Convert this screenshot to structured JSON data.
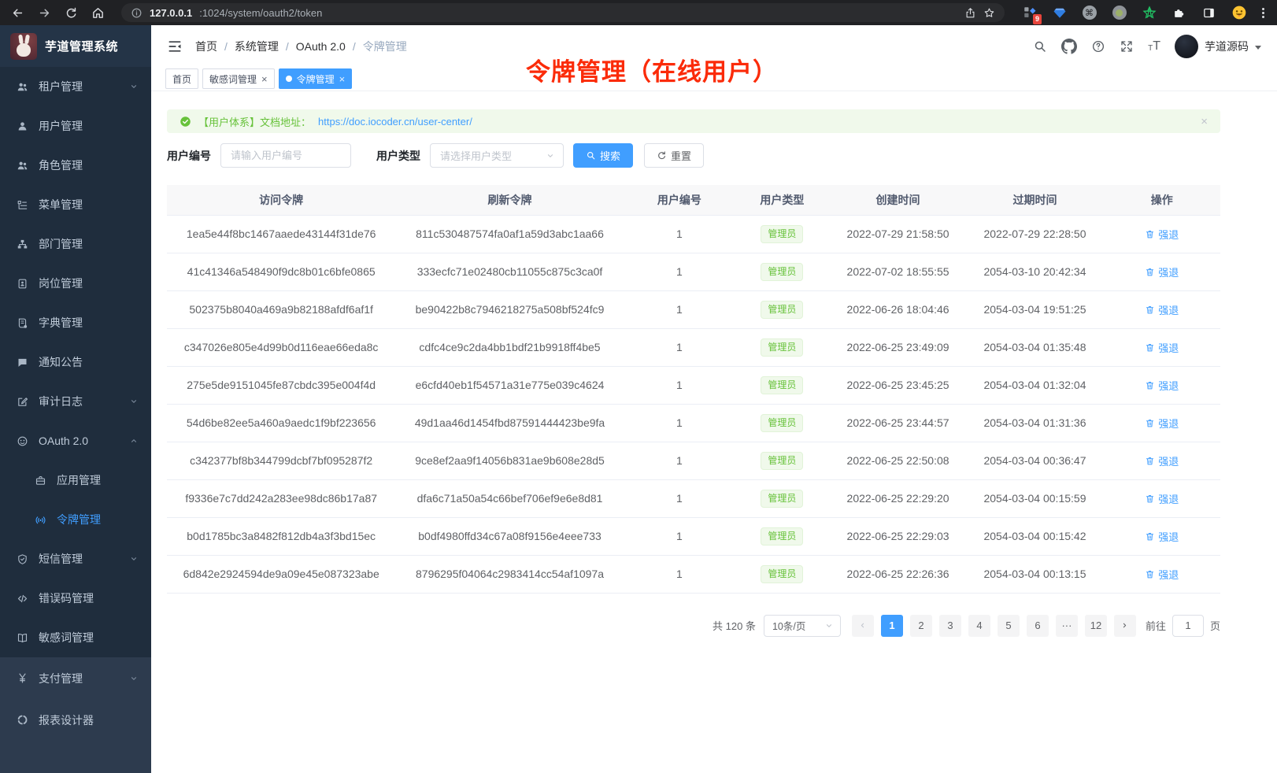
{
  "colors": {
    "accent": "#409eff",
    "success": "#67c23a",
    "annotation_red": "#fb2b09",
    "sidebar_bg": "#1f2d3d"
  },
  "browser": {
    "url": {
      "host": "127.0.0.1",
      "path": ":1024/system/oauth2/token"
    },
    "extension_badge": "9"
  },
  "app": {
    "title": "芋道管理系统"
  },
  "header": {
    "breadcrumb": [
      "首页",
      "系统管理",
      "OAuth 2.0",
      "令牌管理"
    ],
    "breadcrumb_sep": "/",
    "username": "芋道源码"
  },
  "tabs": [
    {
      "label": "首页",
      "closable": false,
      "active": false
    },
    {
      "label": "敏感词管理",
      "closable": true,
      "active": false
    },
    {
      "label": "令牌管理",
      "closable": true,
      "active": true
    }
  ],
  "annotation": {
    "text": "令牌管理（在线用户）"
  },
  "alert": {
    "prefix": "【用户体系】文档地址：",
    "link": "https://doc.iocoder.cn/user-center/",
    "close": "×"
  },
  "filters": {
    "user_id_label": "用户编号",
    "user_id_placeholder": "请输入用户编号",
    "user_type_label": "用户类型",
    "user_type_placeholder": "请选择用户类型",
    "search_label": "搜索",
    "reset_label": "重置"
  },
  "sidebar": {
    "items": [
      {
        "id": "tenant",
        "label": "租户管理",
        "icon": "tenant-icon",
        "glyph": "people",
        "chevron": true
      },
      {
        "id": "user",
        "label": "用户管理",
        "icon": "user-icon",
        "glyph": "user"
      },
      {
        "id": "role",
        "label": "角色管理",
        "icon": "role-icon",
        "glyph": "people"
      },
      {
        "id": "menu",
        "label": "菜单管理",
        "icon": "menu-tree-icon",
        "glyph": "menu"
      },
      {
        "id": "dept",
        "label": "部门管理",
        "icon": "org-chart-icon",
        "glyph": "org"
      },
      {
        "id": "post",
        "label": "岗位管理",
        "icon": "badge-icon",
        "glyph": "badge"
      },
      {
        "id": "dict",
        "label": "字典管理",
        "icon": "dictionary-icon",
        "glyph": "dict"
      },
      {
        "id": "notice",
        "label": "通知公告",
        "icon": "message-bubble-icon",
        "glyph": "bubble"
      },
      {
        "id": "audit",
        "label": "审计日志",
        "icon": "edit-log-icon",
        "glyph": "edit",
        "chevron": true
      },
      {
        "id": "oauth2",
        "label": "OAuth 2.0",
        "icon": "oauth-face-icon",
        "glyph": "face",
        "chevron": true,
        "expanded": true,
        "children": [
          {
            "id": "oauth-app",
            "label": "应用管理",
            "icon": "briefcase-icon",
            "glyph": "case"
          },
          {
            "id": "oauth-token",
            "label": "令牌管理",
            "icon": "broadcast-icon",
            "glyph": "cast",
            "active": true
          }
        ]
      },
      {
        "id": "sms",
        "label": "短信管理",
        "icon": "shield-icon",
        "glyph": "shield",
        "chevron": true
      },
      {
        "id": "errcode",
        "label": "错误码管理",
        "icon": "code-icon",
        "glyph": "code"
      },
      {
        "id": "sensitive",
        "label": "敏感词管理",
        "icon": "open-book-icon",
        "glyph": "book"
      },
      {
        "id": "pay",
        "label": "支付管理",
        "icon": "yen-icon",
        "glyph": "yen",
        "chevron": true,
        "section": "light"
      },
      {
        "id": "report",
        "label": "报表设计器",
        "icon": "ring-chart-icon",
        "glyph": "ring",
        "section": "light"
      }
    ]
  },
  "table": {
    "columns": [
      "访问令牌",
      "刷新令牌",
      "用户编号",
      "用户类型",
      "创建时间",
      "过期时间",
      "操作"
    ],
    "rows": [
      {
        "access_token": "1ea5e44f8bc1467aaede43144f31de76",
        "refresh_token": "811c530487574fa0af1a59d3abc1aa66",
        "user_id": "1",
        "user_type": "管理员",
        "create_time": "2022-07-29 21:58:50",
        "expire_time": "2022-07-29 22:28:50",
        "action": "强退"
      },
      {
        "access_token": "41c41346a548490f9dc8b01c6bfe0865",
        "refresh_token": "333ecfc71e02480cb11055c875c3ca0f",
        "user_id": "1",
        "user_type": "管理员",
        "create_time": "2022-07-02 18:55:55",
        "expire_time": "2054-03-10 20:42:34",
        "action": "强退"
      },
      {
        "access_token": "502375b8040a469a9b82188afdf6af1f",
        "refresh_token": "be90422b8c7946218275a508bf524fc9",
        "user_id": "1",
        "user_type": "管理员",
        "create_time": "2022-06-26 18:04:46",
        "expire_time": "2054-03-04 19:51:25",
        "action": "强退"
      },
      {
        "access_token": "c347026e805e4d99b0d116eae66eda8c",
        "refresh_token": "cdfc4ce9c2da4bb1bdf21b9918ff4be5",
        "user_id": "1",
        "user_type": "管理员",
        "create_time": "2022-06-25 23:49:09",
        "expire_time": "2054-03-04 01:35:48",
        "action": "强退"
      },
      {
        "access_token": "275e5de9151045fe87cbdc395e004f4d",
        "refresh_token": "e6cfd40eb1f54571a31e775e039c4624",
        "user_id": "1",
        "user_type": "管理员",
        "create_time": "2022-06-25 23:45:25",
        "expire_time": "2054-03-04 01:32:04",
        "action": "强退"
      },
      {
        "access_token": "54d6be82ee5a460a9aedc1f9bf223656",
        "refresh_token": "49d1aa46d1454fbd87591444423be9fa",
        "user_id": "1",
        "user_type": "管理员",
        "create_time": "2022-06-25 23:44:57",
        "expire_time": "2054-03-04 01:31:36",
        "action": "强退"
      },
      {
        "access_token": "c342377bf8b344799dcbf7bf095287f2",
        "refresh_token": "9ce8ef2aa9f14056b831ae9b608e28d5",
        "user_id": "1",
        "user_type": "管理员",
        "create_time": "2022-06-25 22:50:08",
        "expire_time": "2054-03-04 00:36:47",
        "action": "强退"
      },
      {
        "access_token": "f9336e7c7dd242a283ee98dc86b17a87",
        "refresh_token": "dfa6c71a50a54c66bef706ef9e6e8d81",
        "user_id": "1",
        "user_type": "管理员",
        "create_time": "2022-06-25 22:29:20",
        "expire_time": "2054-03-04 00:15:59",
        "action": "强退"
      },
      {
        "access_token": "b0d1785bc3a8482f812db4a3f3bd15ec",
        "refresh_token": "b0df4980ffd34c67a08f9156e4eee733",
        "user_id": "1",
        "user_type": "管理员",
        "create_time": "2022-06-25 22:29:03",
        "expire_time": "2054-03-04 00:15:42",
        "action": "强退"
      },
      {
        "access_token": "6d842e2924594de9a09e45e087323abe",
        "refresh_token": "8796295f04064c2983414cc54af1097a",
        "user_id": "1",
        "user_type": "管理员",
        "create_time": "2022-06-25 22:26:36",
        "expire_time": "2054-03-04 00:13:15",
        "action": "强退"
      }
    ]
  },
  "pagination": {
    "total": "共 120 条",
    "page_size": "10条/页",
    "pages": [
      "1",
      "2",
      "3",
      "4",
      "5",
      "6",
      "···",
      "12"
    ],
    "active_page": "1",
    "goto_label": "前往",
    "goto_value": "1",
    "goto_unit": "页"
  }
}
